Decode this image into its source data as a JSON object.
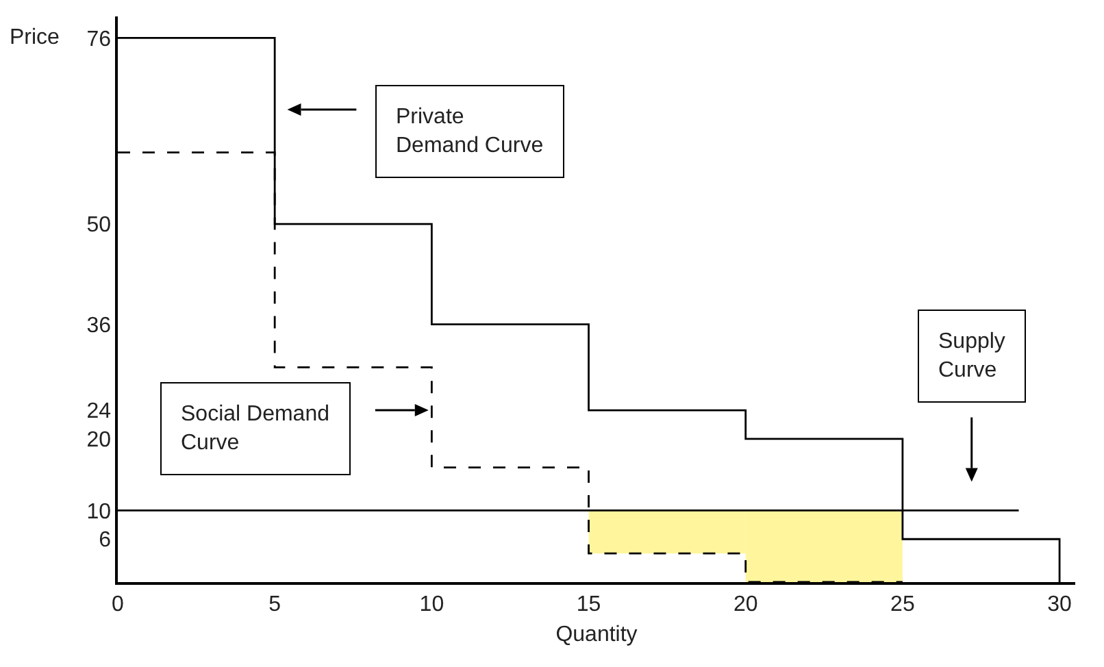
{
  "chart_data": {
    "type": "step",
    "xlabel": "Quantity",
    "ylabel": "Price",
    "xlim": [
      0,
      30.5
    ],
    "xticks": [
      0,
      5,
      10,
      15,
      20,
      25,
      30
    ],
    "ylim": [
      0,
      79
    ],
    "yticks": [
      6,
      10,
      20,
      24,
      36,
      50,
      76
    ],
    "grid": false,
    "marker": "none",
    "series": [
      {
        "type": "bar",
        "color": "#fff59d",
        "x": [
          17.5,
          22.5
        ],
        "values": [
          6,
          10
        ],
        "base": [
          4,
          0
        ]
      },
      {
        "color": "#000000",
        "x": [
          0,
          5,
          10,
          15,
          20,
          25,
          30
        ],
        "values": [
          76,
          50,
          36,
          24,
          20,
          6,
          0
        ],
        "line_style": "solid"
      },
      {
        "color": "#000000",
        "x": [
          0,
          5,
          10,
          15,
          20,
          25
        ],
        "values": [
          60,
          30,
          16,
          4,
          0,
          0
        ],
        "line_style": "dashed"
      },
      {
        "type": "line",
        "color": "#000000",
        "x": [
          0,
          28.7
        ],
        "values": [
          10,
          10
        ],
        "line_style": "solid"
      }
    ],
    "annotations": [
      "Private\nDemand Curve",
      "Social Demand\nCurve",
      "Supply\nCurve"
    ]
  }
}
